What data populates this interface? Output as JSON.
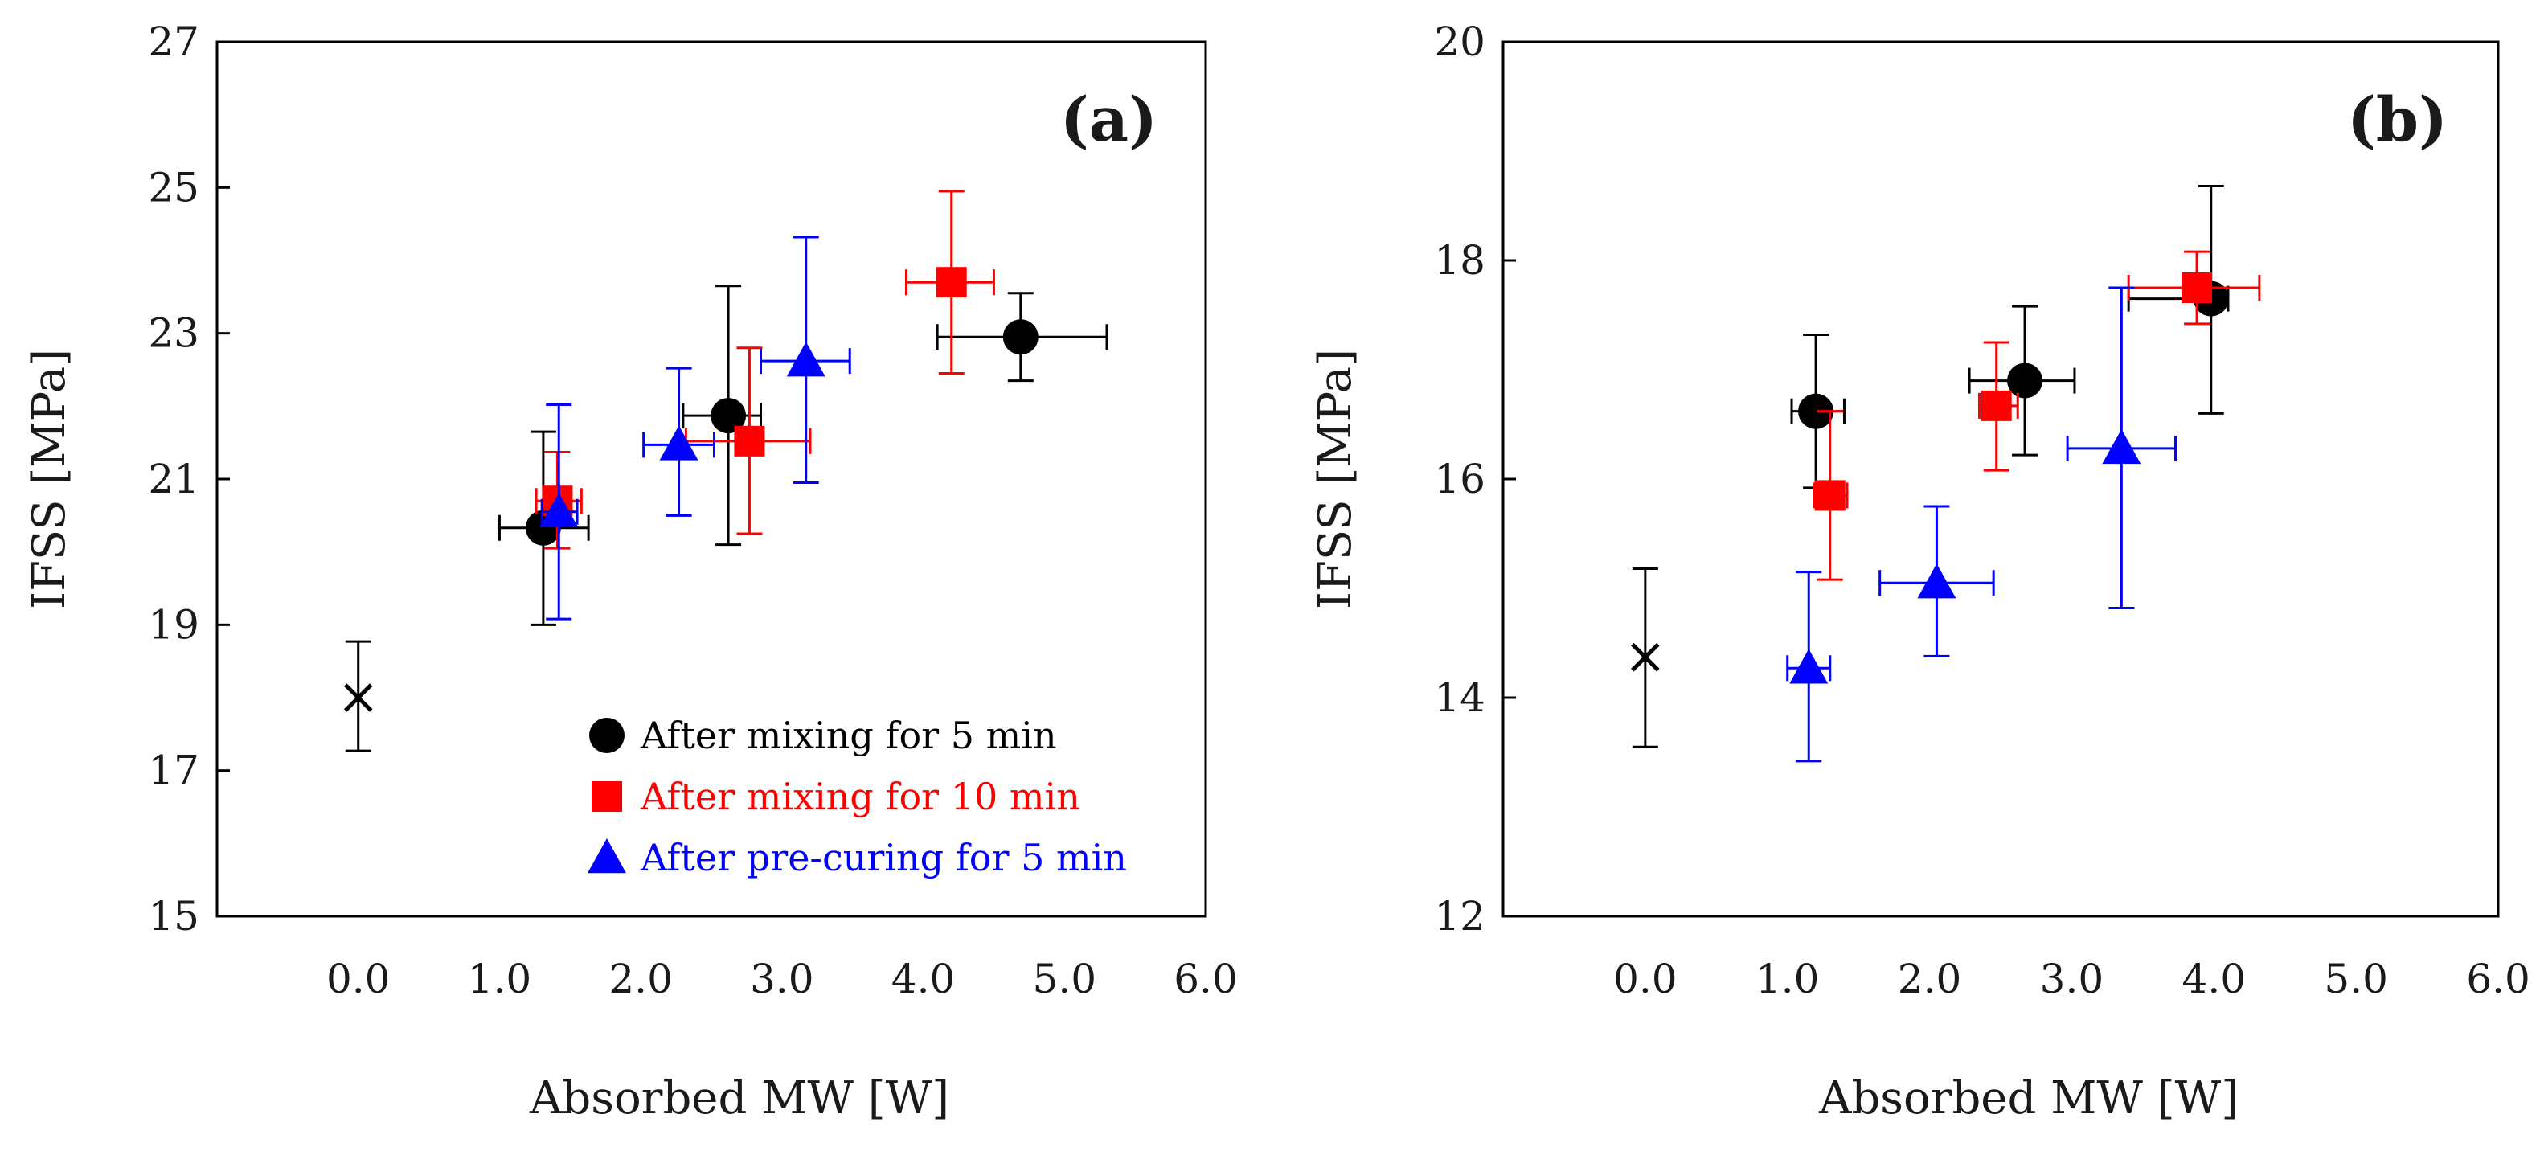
{
  "chart_data": [
    {
      "type": "scatter",
      "panel_label": "(a)",
      "xlabel": "Absorbed MW [W]",
      "ylabel": "IFSS [MPa]",
      "xlim": [
        -1.0,
        6.0
      ],
      "ylim": [
        15,
        27
      ],
      "xticks": [
        "0.0",
        "1.0",
        "2.0",
        "3.0",
        "4.0",
        "5.0",
        "6.0"
      ],
      "yticks": [
        "15",
        "17",
        "19",
        "21",
        "23",
        "25",
        "27"
      ],
      "grid": false,
      "legend_position": "bottom-right",
      "control": {
        "marker": "x",
        "color": "#000000",
        "x": 0.0,
        "y": 18.0,
        "yerr": [
          17.27,
          18.77
        ]
      },
      "series": [
        {
          "name": "After mixing for 5 min",
          "marker": "circle",
          "color": "#000000",
          "points": [
            {
              "x": 1.31,
              "y": 20.33,
              "xerr": [
                1.0,
                1.63
              ],
              "yerr": [
                19.0,
                21.65
              ]
            },
            {
              "x": 2.62,
              "y": 21.87,
              "xerr": [
                2.3,
                2.85
              ],
              "yerr": [
                20.1,
                23.65
              ]
            },
            {
              "x": 4.69,
              "y": 22.95,
              "xerr": [
                4.1,
                5.3
              ],
              "yerr": [
                22.35,
                23.55
              ]
            }
          ]
        },
        {
          "name": "After mixing for 10 min",
          "marker": "square",
          "color": "#ff0000",
          "points": [
            {
              "x": 1.41,
              "y": 20.7,
              "xerr": [
                1.26,
                1.58
              ],
              "yerr": [
                20.05,
                21.37
              ]
            },
            {
              "x": 2.77,
              "y": 21.52,
              "xerr": [
                2.32,
                3.2
              ],
              "yerr": [
                20.25,
                22.8
              ]
            },
            {
              "x": 4.2,
              "y": 23.7,
              "xerr": [
                3.88,
                4.5
              ],
              "yerr": [
                22.45,
                24.95
              ]
            }
          ]
        },
        {
          "name": "After pre-curing for 5 min",
          "marker": "triangle",
          "color": "#0000ff",
          "points": [
            {
              "x": 1.42,
              "y": 20.55,
              "xerr": [
                1.3,
                1.55
              ],
              "yerr": [
                19.08,
                22.02
              ]
            },
            {
              "x": 2.27,
              "y": 21.47,
              "xerr": [
                2.02,
                2.52
              ],
              "yerr": [
                20.5,
                22.52
              ]
            },
            {
              "x": 3.17,
              "y": 22.62,
              "xerr": [
                2.85,
                3.48
              ],
              "yerr": [
                20.95,
                24.32
              ]
            }
          ]
        }
      ]
    },
    {
      "type": "scatter",
      "panel_label": "(b)",
      "xlabel": "Absorbed MW [W]",
      "ylabel": "IFSS [MPa]",
      "xlim": [
        -1.0,
        6.0
      ],
      "ylim": [
        12,
        20
      ],
      "xticks": [
        "0.0",
        "1.0",
        "2.0",
        "3.0",
        "4.0",
        "5.0",
        "6.0"
      ],
      "yticks": [
        "12",
        "14",
        "16",
        "18",
        "20"
      ],
      "grid": false,
      "control": {
        "marker": "x",
        "color": "#000000",
        "x": 0.0,
        "y": 14.37,
        "yerr": [
          13.55,
          15.18
        ]
      },
      "series": [
        {
          "name": "After mixing for 5 min",
          "marker": "circle",
          "color": "#000000",
          "points": [
            {
              "x": 1.2,
              "y": 16.62,
              "xerr": [
                1.03,
                1.4
              ],
              "yerr": [
                15.92,
                17.32
              ]
            },
            {
              "x": 2.67,
              "y": 16.9,
              "xerr": [
                2.28,
                3.02
              ],
              "yerr": [
                16.22,
                17.58
              ]
            },
            {
              "x": 3.98,
              "y": 17.65,
              "xerr": [
                3.4,
                4.1
              ],
              "yerr": [
                16.6,
                18.68
              ]
            }
          ]
        },
        {
          "name": "After mixing for 10 min",
          "marker": "square",
          "color": "#ff0000",
          "points": [
            {
              "x": 1.3,
              "y": 15.85,
              "xerr": [
                1.19,
                1.42
              ],
              "yerr": [
                15.08,
                16.62
              ]
            },
            {
              "x": 2.47,
              "y": 16.67,
              "xerr": [
                2.35,
                2.62
              ],
              "yerr": [
                16.08,
                17.25
              ]
            },
            {
              "x": 3.88,
              "y": 17.75,
              "xerr": [
                3.4,
                4.32
              ],
              "yerr": [
                17.42,
                18.08
              ]
            }
          ]
        },
        {
          "name": "After pre-curing for 5 min",
          "marker": "triangle",
          "color": "#0000ff",
          "points": [
            {
              "x": 1.15,
              "y": 14.27,
              "xerr": [
                1.0,
                1.3
              ],
              "yerr": [
                13.42,
                15.15
              ]
            },
            {
              "x": 2.05,
              "y": 15.05,
              "xerr": [
                1.65,
                2.45
              ],
              "yerr": [
                14.38,
                15.75
              ]
            },
            {
              "x": 3.35,
              "y": 16.28,
              "xerr": [
                2.97,
                3.73
              ],
              "yerr": [
                14.82,
                17.75
              ]
            }
          ]
        }
      ]
    }
  ]
}
